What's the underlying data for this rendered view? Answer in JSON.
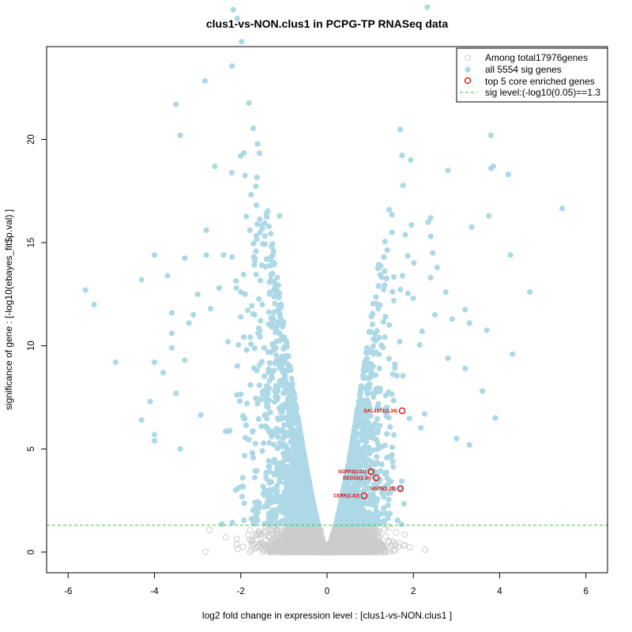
{
  "colors": {
    "all_genes": "#cccccc",
    "sig_genes": "#add8e6",
    "core_genes": "#dd0000",
    "sig_line": "#33cc33",
    "frame": "#000000"
  },
  "chart_data": {
    "type": "scatter",
    "title": "clus1-vs-NON.clus1 in PCPG-TP RNASeq data",
    "xlabel": "log2 fold change in expression level : [clus1-vs-NON.clus1 ]",
    "ylabel": "significance of gene : [-log10(ebayes_fit$p.val) ]",
    "xlim": [
      -6.5,
      6.5
    ],
    "ylim": [
      -1,
      24.5
    ],
    "x_ticks": [
      -6,
      -4,
      -2,
      0,
      2,
      4,
      6
    ],
    "x_tick_labels": [
      "-6",
      "-4",
      "-2",
      "0",
      "2",
      "4",
      "6"
    ],
    "y_ticks": [
      0,
      5,
      10,
      15,
      20
    ],
    "y_tick_labels": [
      "0",
      "5",
      "10",
      "15",
      "20"
    ],
    "sig_level": 1.3,
    "legend": {
      "position": "top-right",
      "entries": [
        {
          "label": "Among total17976genes",
          "symbol": "open-circle-gray"
        },
        {
          "label": "all 5554 sig genes",
          "symbol": "filled-circle-lightblue"
        },
        {
          "label": "top 5 core enriched genes",
          "symbol": "open-circle-red"
        },
        {
          "label": "sig level:(-log10(0.05)==1.3",
          "symbol": "dashed-line-green"
        }
      ]
    },
    "core_genes": [
      {
        "label": "GAL3ST1(1.34)",
        "x": 1.74,
        "y": 6.85
      },
      {
        "label": "SGPP2(2.03)",
        "x": 1.02,
        "y": 3.9
      },
      {
        "label": "DEGS2(2.26)",
        "x": 1.14,
        "y": 3.6
      },
      {
        "label": "UGT8(1.25)",
        "x": 1.7,
        "y": 3.08
      },
      {
        "label": "CERK(1.82)",
        "x": 0.86,
        "y": 2.73
      }
    ],
    "sig_outliers": [
      {
        "x": -3.5,
        "y": 21.7
      },
      {
        "x": -3.4,
        "y": 20.2
      },
      {
        "x": -2.6,
        "y": 18.7
      },
      {
        "x": -1.4,
        "y": 16.3
      },
      {
        "x": -1.1,
        "y": 16.3
      },
      {
        "x": -2.8,
        "y": 15.6
      },
      {
        "x": -4.0,
        "y": 14.4
      },
      {
        "x": -3.3,
        "y": 14.25
      },
      {
        "x": -2.8,
        "y": 14.4
      },
      {
        "x": -2.4,
        "y": 14.4
      },
      {
        "x": -2.2,
        "y": 14.3
      },
      {
        "x": -1.7,
        "y": 14.3
      },
      {
        "x": -1.4,
        "y": 14.2
      },
      {
        "x": -4.3,
        "y": 13.2
      },
      {
        "x": -3.7,
        "y": 13.4
      },
      {
        "x": -1.2,
        "y": 13.0
      },
      {
        "x": -5.6,
        "y": 12.7
      },
      {
        "x": -5.4,
        "y": 12.0
      },
      {
        "x": -3.0,
        "y": 12.5
      },
      {
        "x": -2.5,
        "y": 12.8
      },
      {
        "x": -2.0,
        "y": 12.6
      },
      {
        "x": -1.9,
        "y": 12.5
      },
      {
        "x": -3.6,
        "y": 11.6
      },
      {
        "x": -2.7,
        "y": 11.8
      },
      {
        "x": -3.1,
        "y": 11.5
      },
      {
        "x": -1.5,
        "y": 12.0
      },
      {
        "x": -3.6,
        "y": 10.6
      },
      {
        "x": -3.2,
        "y": 11.1
      },
      {
        "x": -2.0,
        "y": 11.4
      },
      {
        "x": -3.6,
        "y": 9.9
      },
      {
        "x": -4.9,
        "y": 9.2
      },
      {
        "x": -4.0,
        "y": 9.2
      },
      {
        "x": -3.3,
        "y": 9.3
      },
      {
        "x": -3.8,
        "y": 8.7
      },
      {
        "x": -3.5,
        "y": 7.7
      },
      {
        "x": -4.1,
        "y": 7.3
      },
      {
        "x": -4.3,
        "y": 6.4
      },
      {
        "x": -4.0,
        "y": 5.7
      },
      {
        "x": -4.0,
        "y": 5.4
      },
      {
        "x": -3.4,
        "y": 5.0
      },
      {
        "x": -2.3,
        "y": 10.2
      },
      {
        "x": 3.8,
        "y": 20.2
      },
      {
        "x": 3.8,
        "y": 18.6
      },
      {
        "x": 3.85,
        "y": 18.7
      },
      {
        "x": 2.8,
        "y": 18.5
      },
      {
        "x": 4.2,
        "y": 18.3
      },
      {
        "x": 5.45,
        "y": 16.65
      },
      {
        "x": 3.75,
        "y": 16.3
      },
      {
        "x": 2.4,
        "y": 16.2
      },
      {
        "x": 3.35,
        "y": 15.75
      },
      {
        "x": 2.4,
        "y": 15.3
      },
      {
        "x": 4.25,
        "y": 14.4
      },
      {
        "x": 2.45,
        "y": 14.5
      },
      {
        "x": 2.55,
        "y": 13.8
      },
      {
        "x": 1.75,
        "y": 13.4
      },
      {
        "x": 2.4,
        "y": 13.3
      },
      {
        "x": 2.75,
        "y": 12.6
      },
      {
        "x": 4.7,
        "y": 12.6
      },
      {
        "x": 2.0,
        "y": 12.3
      },
      {
        "x": 3.2,
        "y": 11.75
      },
      {
        "x": 2.5,
        "y": 11.5
      },
      {
        "x": 2.9,
        "y": 11.3
      },
      {
        "x": 3.3,
        "y": 11.1
      },
      {
        "x": 3.7,
        "y": 10.75
      },
      {
        "x": 2.2,
        "y": 10.7
      },
      {
        "x": 4.3,
        "y": 9.6
      },
      {
        "x": 3.2,
        "y": 8.9
      },
      {
        "x": 3.6,
        "y": 7.8
      },
      {
        "x": 3.9,
        "y": 6.5
      },
      {
        "x": 3.3,
        "y": 5.2
      },
      {
        "x": 3.0,
        "y": 5.5
      },
      {
        "x": 2.8,
        "y": 9.4
      }
    ],
    "nonsig_extra": [
      {
        "x": 1.8,
        "y": 0.85
      },
      {
        "x": -1.3,
        "y": 1.1
      },
      {
        "x": -0.9,
        "y": 0.7
      },
      {
        "x": 1.0,
        "y": 1.0
      },
      {
        "x": 1.2,
        "y": 0.9
      }
    ]
  }
}
